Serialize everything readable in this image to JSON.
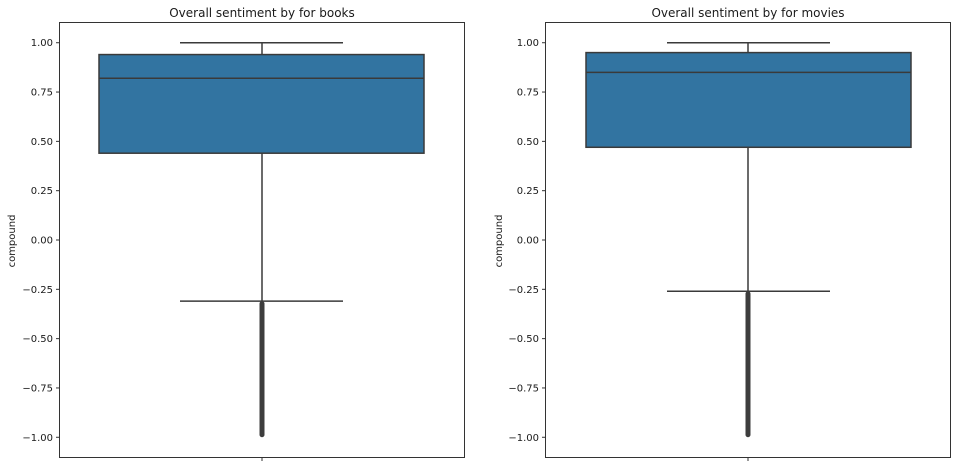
{
  "chart_data": [
    {
      "type": "box",
      "title": "Overall sentiment by for books",
      "xlabel": "",
      "ylabel": "compound",
      "ylim": [
        -1.1,
        1.1
      ],
      "yticks": [
        1.0,
        0.75,
        0.5,
        0.25,
        0.0,
        -0.25,
        -0.5,
        -0.75,
        -1.0
      ],
      "ytick_labels": [
        "1.00",
        "0.75",
        "0.50",
        "0.25",
        "0.00",
        "−0.25",
        "−0.50",
        "−0.75",
        "−1.00"
      ],
      "grid": false,
      "box": {
        "whisker_low": -0.31,
        "q1": 0.44,
        "median": 0.82,
        "q3": 0.94,
        "whisker_high": 1.0,
        "outliers_range": [
          -1.0,
          -0.31
        ],
        "color": "#3274a1",
        "edge_color": "#3a3a3a"
      }
    },
    {
      "type": "box",
      "title": "Overall sentiment by for movies",
      "xlabel": "",
      "ylabel": "compound",
      "ylim": [
        -1.1,
        1.1
      ],
      "yticks": [
        1.0,
        0.75,
        0.5,
        0.25,
        0.0,
        -0.25,
        -0.5,
        -0.75,
        -1.0
      ],
      "ytick_labels": [
        "1.00",
        "0.75",
        "0.50",
        "0.25",
        "0.00",
        "−0.25",
        "−0.50",
        "−0.75",
        "−1.00"
      ],
      "grid": false,
      "box": {
        "whisker_low": -0.26,
        "q1": 0.47,
        "median": 0.85,
        "q3": 0.95,
        "whisker_high": 1.0,
        "outliers_range": [
          -1.0,
          -0.26
        ],
        "color": "#3274a1",
        "edge_color": "#3a3a3a"
      }
    }
  ]
}
